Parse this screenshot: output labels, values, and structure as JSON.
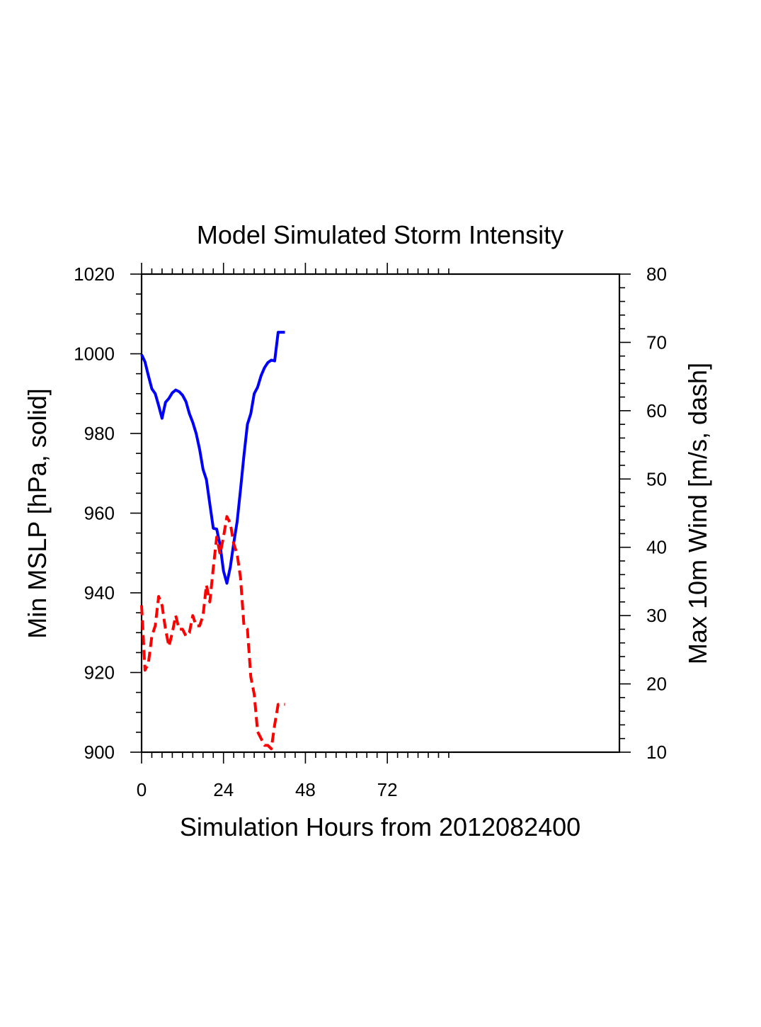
{
  "chart_data": {
    "type": "line",
    "title": "Model Simulated Storm Intensity",
    "xlabel": "Simulation Hours from 2012082400",
    "ylabel_left": "Min MSLP  [hPa, solid]",
    "ylabel_right": "Max 10m Wind  [m/s, dash]",
    "xlim": [
      0,
      140
    ],
    "ylim_left": [
      900,
      1020
    ],
    "ylim_right": [
      10,
      80
    ],
    "x_ticks": [
      0,
      24,
      48,
      72
    ],
    "y_ticks_left": [
      900,
      920,
      940,
      960,
      980,
      1000,
      1020
    ],
    "y_ticks_right": [
      10,
      20,
      30,
      40,
      50,
      60,
      70,
      80
    ],
    "grid": false,
    "legend": "none",
    "series": [
      {
        "axis": "left",
        "style": "solid",
        "color": "#0000ff",
        "x": [
          0,
          1,
          2,
          3,
          4,
          5,
          6,
          7,
          8,
          9,
          10,
          11,
          12,
          13,
          14,
          15,
          16,
          17,
          18,
          19,
          20,
          21,
          22,
          23,
          24,
          25,
          26,
          27,
          28,
          29,
          30,
          31,
          32,
          33,
          34,
          35,
          36,
          37,
          38,
          39,
          40,
          41,
          42
        ],
        "values": [
          999.8,
          998.0,
          994.5,
          991.2,
          990.0,
          987.0,
          983.8,
          987.8,
          988.8,
          990.2,
          990.9,
          990.5,
          989.6,
          988.0,
          985.0,
          982.8,
          980.0,
          976.0,
          971.0,
          968.4,
          962.3,
          956.2,
          956.0,
          952.0,
          945.5,
          942.4,
          946.5,
          952.5,
          957.9,
          966.0,
          974.5,
          982.3,
          985.0,
          990.0,
          991.6,
          994.5,
          996.5,
          997.8,
          998.4,
          998.2,
          1005.4,
          1005.4,
          1005.4
        ]
      },
      {
        "axis": "right",
        "style": "dash",
        "color": "#ff0000",
        "x": [
          0,
          1,
          2,
          3,
          4,
          5,
          6,
          7,
          8,
          9,
          10,
          11,
          12,
          13,
          14,
          15,
          16,
          17,
          18,
          19,
          20,
          21,
          22,
          23,
          24,
          25,
          26,
          27,
          28,
          29,
          30,
          31,
          32,
          33,
          34,
          35,
          36,
          37,
          38,
          39,
          40,
          41,
          42
        ],
        "values": [
          31.5,
          22.0,
          23.0,
          27.0,
          28.5,
          32.8,
          31.5,
          28.0,
          25.5,
          27.5,
          30.0,
          28.0,
          28.0,
          27.0,
          27.5,
          30.0,
          28.5,
          28.5,
          30.0,
          34.5,
          32.0,
          37.0,
          41.5,
          39.0,
          41.5,
          44.5,
          43.5,
          40.5,
          39.0,
          35.5,
          28.5,
          28.0,
          21.0,
          18.5,
          13.0,
          12.0,
          11.0,
          11.0,
          10.5,
          14.0,
          17.0,
          17.0,
          17.0
        ]
      }
    ]
  }
}
